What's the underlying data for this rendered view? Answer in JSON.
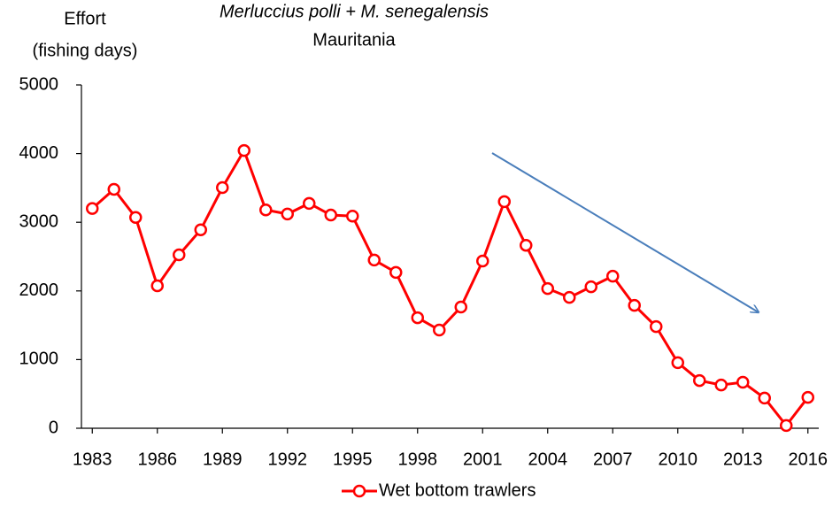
{
  "chart_data": {
    "type": "line",
    "title": "Merluccius polli + M. senegalensis",
    "subtitle": "Mauritania",
    "ylabel": [
      "Effort",
      "(fishing days)"
    ],
    "x": [
      1983,
      1984,
      1985,
      1986,
      1987,
      1988,
      1989,
      1990,
      1991,
      1992,
      1993,
      1994,
      1995,
      1996,
      1997,
      1998,
      1999,
      2000,
      2001,
      2002,
      2003,
      2004,
      2005,
      2006,
      2007,
      2008,
      2009,
      2010,
      2011,
      2012,
      2013,
      2014,
      2015,
      2016
    ],
    "series": [
      {
        "name": "Wet bottom trawlers",
        "color": "#ff0000",
        "values": [
          3200,
          3480,
          3070,
          2075,
          2525,
          2890,
          3505,
          4045,
          3180,
          3120,
          3275,
          3105,
          3090,
          2450,
          2270,
          1610,
          1430,
          1765,
          2435,
          3300,
          2665,
          2035,
          1905,
          2060,
          2215,
          1790,
          1480,
          955,
          695,
          630,
          670,
          440,
          40,
          450
        ]
      }
    ],
    "xlim": [
      1982.5,
      2016.5
    ],
    "xticks": [
      1983,
      1986,
      1989,
      1992,
      1995,
      1998,
      2001,
      2004,
      2007,
      2010,
      2013,
      2016
    ],
    "ylim": [
      0,
      5000
    ],
    "yticks": [
      0,
      1000,
      2000,
      3000,
      4000,
      5000
    ],
    "legend": "bottom"
  }
}
